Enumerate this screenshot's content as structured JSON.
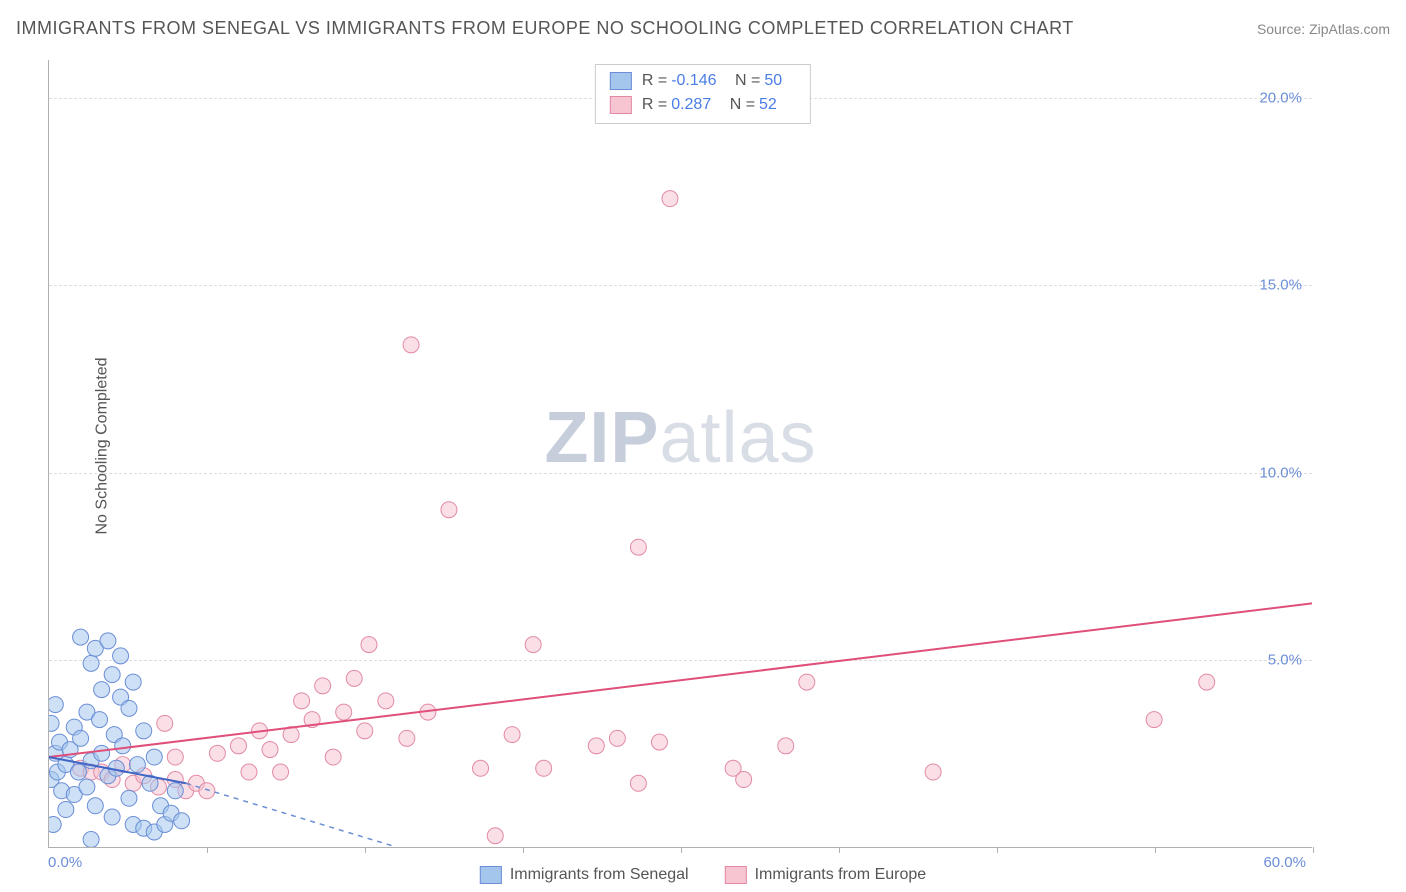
{
  "title": "IMMIGRANTS FROM SENEGAL VS IMMIGRANTS FROM EUROPE NO SCHOOLING COMPLETED CORRELATION CHART",
  "source": "Source: ZipAtlas.com",
  "ylabel": "No Schooling Completed",
  "watermark_bold": "ZIP",
  "watermark_light": "atlas",
  "chart": {
    "type": "scatter",
    "xlim": [
      0,
      60
    ],
    "ylim": [
      0,
      21
    ],
    "x_origin_label": "0.0%",
    "x_max_label": "60.0%",
    "x_tick_positions": [
      7.5,
      15,
      22.5,
      30,
      37.5,
      45,
      52.5,
      60
    ],
    "y_gridlines": [
      5,
      10,
      15,
      20
    ],
    "y_tick_labels": [
      "5.0%",
      "10.0%",
      "15.0%",
      "20.0%"
    ],
    "marker_radius": 8,
    "background_color": "#ffffff",
    "grid_color": "#dddddd",
    "axis_color": "#b0b0b0",
    "tick_label_color": "#6b8ed6",
    "label_color": "#555555",
    "title_fontsize": 18,
    "label_fontsize": 16,
    "tick_fontsize": 15
  },
  "series": {
    "senegal": {
      "label": "Immigrants from Senegal",
      "r": "-0.146",
      "n": "50",
      "fill_color": "#a4c6ed",
      "stroke_color": "#6b8ed6",
      "trend_color": "#3f66c4",
      "trend_solid": {
        "x1": 0,
        "y1": 2.4,
        "x2": 6.5,
        "y2": 1.7
      },
      "trend_dash": {
        "x1": 6.5,
        "y1": 1.7,
        "x2": 16.5,
        "y2": 0
      },
      "points": [
        [
          0.2,
          0.6
        ],
        [
          0.1,
          1.8
        ],
        [
          0.3,
          2.5
        ],
        [
          0.1,
          3.3
        ],
        [
          0.4,
          2.0
        ],
        [
          0.6,
          1.5
        ],
        [
          0.5,
          2.8
        ],
        [
          0.3,
          3.8
        ],
        [
          0.8,
          2.2
        ],
        [
          0.8,
          1.0
        ],
        [
          1.0,
          2.6
        ],
        [
          1.2,
          1.4
        ],
        [
          1.2,
          3.2
        ],
        [
          1.4,
          2.0
        ],
        [
          1.5,
          2.9
        ],
        [
          1.5,
          5.6
        ],
        [
          1.8,
          1.6
        ],
        [
          1.8,
          3.6
        ],
        [
          2.0,
          4.9
        ],
        [
          2.0,
          0.2
        ],
        [
          2.0,
          2.3
        ],
        [
          2.2,
          5.3
        ],
        [
          2.2,
          1.1
        ],
        [
          2.4,
          3.4
        ],
        [
          2.5,
          2.5
        ],
        [
          2.5,
          4.2
        ],
        [
          2.8,
          5.5
        ],
        [
          2.8,
          1.9
        ],
        [
          3.0,
          4.6
        ],
        [
          3.0,
          0.8
        ],
        [
          3.1,
          3.0
        ],
        [
          3.2,
          2.1
        ],
        [
          3.4,
          4.0
        ],
        [
          3.4,
          5.1
        ],
        [
          3.5,
          2.7
        ],
        [
          3.8,
          1.3
        ],
        [
          3.8,
          3.7
        ],
        [
          4.0,
          0.6
        ],
        [
          4.0,
          4.4
        ],
        [
          4.2,
          2.2
        ],
        [
          4.5,
          3.1
        ],
        [
          4.5,
          0.5
        ],
        [
          4.8,
          1.7
        ],
        [
          5.0,
          0.4
        ],
        [
          5.0,
          2.4
        ],
        [
          5.3,
          1.1
        ],
        [
          5.5,
          0.6
        ],
        [
          5.8,
          0.9
        ],
        [
          6.0,
          1.5
        ],
        [
          6.3,
          0.7
        ]
      ]
    },
    "europe": {
      "label": "Immigrants from Europe",
      "r": "0.287",
      "n": "52",
      "fill_color": "#f6c5d1",
      "stroke_color": "#e28aa3",
      "trend_color": "#e04e7a",
      "trend": {
        "x1": 0,
        "y1": 2.4,
        "x2": 60,
        "y2": 6.5
      },
      "points": [
        [
          1.5,
          2.1
        ],
        [
          2.0,
          2.0
        ],
        [
          2.5,
          2.0
        ],
        [
          3.0,
          1.8
        ],
        [
          3.5,
          2.2
        ],
        [
          4.0,
          1.7
        ],
        [
          4.5,
          1.9
        ],
        [
          5.2,
          1.6
        ],
        [
          5.5,
          3.3
        ],
        [
          6.0,
          1.8
        ],
        [
          6.5,
          1.5
        ],
        [
          7.0,
          1.7
        ],
        [
          7.5,
          1.5
        ],
        [
          8.0,
          2.5
        ],
        [
          9.0,
          2.7
        ],
        [
          10.0,
          3.1
        ],
        [
          10.5,
          2.6
        ],
        [
          11.0,
          2.0
        ],
        [
          11.5,
          3.0
        ],
        [
          12.0,
          3.9
        ],
        [
          12.5,
          3.4
        ],
        [
          13.0,
          4.3
        ],
        [
          13.5,
          2.4
        ],
        [
          14.0,
          3.6
        ],
        [
          14.5,
          4.5
        ],
        [
          15.0,
          3.1
        ],
        [
          15.2,
          5.4
        ],
        [
          16.0,
          3.9
        ],
        [
          17.0,
          2.9
        ],
        [
          17.2,
          13.4
        ],
        [
          18.0,
          3.6
        ],
        [
          19.0,
          9.0
        ],
        [
          20.5,
          2.1
        ],
        [
          21.2,
          0.3
        ],
        [
          22.0,
          3.0
        ],
        [
          23.0,
          5.4
        ],
        [
          23.5,
          2.1
        ],
        [
          26.0,
          2.7
        ],
        [
          27.0,
          2.9
        ],
        [
          28.0,
          1.7
        ],
        [
          28.0,
          8.0
        ],
        [
          29.0,
          2.8
        ],
        [
          29.5,
          17.3
        ],
        [
          32.5,
          2.1
        ],
        [
          33.0,
          1.8
        ],
        [
          35.0,
          2.7
        ],
        [
          36.0,
          4.4
        ],
        [
          52.5,
          3.4
        ],
        [
          55.0,
          4.4
        ],
        [
          42.0,
          2.0
        ],
        [
          9.5,
          2.0
        ],
        [
          6.0,
          2.4
        ]
      ]
    }
  }
}
